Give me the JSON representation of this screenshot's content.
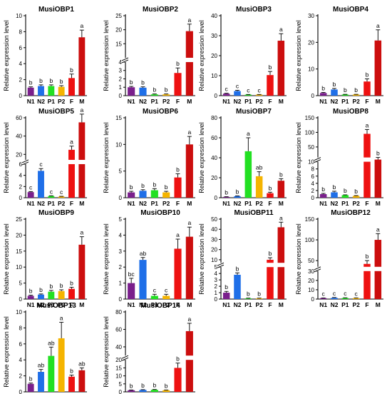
{
  "figure": {
    "ylabel": "Relative expression level",
    "categories": [
      "N1",
      "N2",
      "P1",
      "P2",
      "F",
      "M"
    ],
    "colors": [
      "#7a1f8c",
      "#1f6fe8",
      "#22e022",
      "#f5b400",
      "#ee1111",
      "#cc0e0e"
    ]
  },
  "chart_data": [
    {
      "type": "bar",
      "title": "MusiOBP1",
      "categories": [
        "N1",
        "N2",
        "P1",
        "P2",
        "F",
        "M"
      ],
      "values": [
        1.0,
        1.2,
        1.2,
        1.1,
        2.2,
        7.3
      ],
      "errors": [
        0.1,
        0.15,
        0.15,
        0.15,
        0.5,
        0.9
      ],
      "letters": [
        "b",
        "b",
        "b",
        "b",
        "b",
        "a"
      ],
      "ylabel": "Relative expression level",
      "ylim": [
        0,
        10
      ],
      "yticks": [
        0,
        2,
        4,
        6,
        8,
        10
      ]
    },
    {
      "type": "bar",
      "title": "MusiOBP2",
      "categories": [
        "N1",
        "N2",
        "P1",
        "P2",
        "F",
        "M"
      ],
      "values": [
        1.0,
        0.95,
        0.15,
        0.15,
        2.7,
        19.5
      ],
      "errors": [
        0.1,
        0.1,
        0.05,
        0.05,
        0.6,
        2.5
      ],
      "letters": [
        "b",
        "b",
        "b",
        "b",
        "b",
        "a"
      ],
      "ylabel": "Relative expression level",
      "ylim": [
        0,
        25
      ],
      "yticks": [
        0,
        1,
        2,
        3,
        4,
        15,
        20,
        25
      ],
      "axis_break": [
        4,
        10
      ]
    },
    {
      "type": "bar",
      "title": "MusiOBP3",
      "categories": [
        "N1",
        "N2",
        "P1",
        "P2",
        "F",
        "M"
      ],
      "values": [
        1.0,
        2.3,
        0.5,
        0.5,
        10.3,
        27.5
      ],
      "errors": [
        0.2,
        0.4,
        0.1,
        0.1,
        1.8,
        3.5
      ],
      "letters": [
        "c",
        "c",
        "c",
        "c",
        "b",
        "a"
      ],
      "ylabel": "Relative expression level",
      "ylim": [
        0,
        40
      ],
      "yticks": [
        0,
        10,
        20,
        30,
        40
      ]
    },
    {
      "type": "bar",
      "title": "MusiOBP4",
      "categories": [
        "N1",
        "N2",
        "P1",
        "P2",
        "F",
        "M"
      ],
      "values": [
        1.0,
        2.3,
        0.4,
        0.4,
        5.3,
        20.7
      ],
      "errors": [
        0.2,
        0.4,
        0.1,
        0.1,
        1.0,
        4.0
      ],
      "letters": [
        "b",
        "b",
        "b",
        "b",
        "b",
        "a"
      ],
      "ylabel": "Relative expression level",
      "ylim": [
        0,
        30
      ],
      "yticks": [
        0,
        10,
        20,
        30
      ]
    },
    {
      "type": "bar",
      "title": "MusiOBP5",
      "categories": [
        "N1",
        "N2",
        "P1",
        "P2",
        "F",
        "M"
      ],
      "values": [
        1.0,
        4.8,
        0.3,
        0.2,
        25,
        55
      ],
      "errors": [
        0.1,
        0.4,
        0.05,
        0.05,
        4,
        9
      ],
      "letters": [
        "c",
        "c",
        "c",
        "c",
        "a",
        "a"
      ],
      "ylabel": "Relative expression level",
      "ylim": [
        0,
        60
      ],
      "yticks": [
        0,
        2,
        4,
        6,
        20,
        40,
        60
      ],
      "axis_break": [
        6,
        14
      ]
    },
    {
      "type": "bar",
      "title": "MusiOBP6",
      "categories": [
        "N1",
        "N2",
        "P1",
        "P2",
        "F",
        "M"
      ],
      "values": [
        1.0,
        1.3,
        1.4,
        1.0,
        3.8,
        10.0
      ],
      "errors": [
        0.2,
        0.2,
        0.3,
        0.2,
        0.7,
        1.5
      ],
      "letters": [
        "b",
        "b",
        "b",
        "b",
        "b",
        "a"
      ],
      "ylabel": "Relative expression level",
      "ylim": [
        0,
        15
      ],
      "yticks": [
        0,
        5,
        10,
        15
      ]
    },
    {
      "type": "bar",
      "title": "MusiOBP7",
      "categories": [
        "N1",
        "N2",
        "P1",
        "P2",
        "F",
        "M"
      ],
      "values": [
        0.8,
        1.5,
        46.5,
        21.5,
        4.5,
        17.0
      ],
      "errors": [
        0.2,
        0.3,
        13.5,
        4.5,
        1.0,
        2.0
      ],
      "letters": [
        "b",
        "b",
        "a",
        "ab",
        "b",
        "b"
      ],
      "ylabel": "Relative expression level",
      "ylim": [
        0,
        80
      ],
      "yticks": [
        0,
        20,
        40,
        60,
        80
      ]
    },
    {
      "type": "bar",
      "title": "MusiOBP8",
      "categories": [
        "N1",
        "N2",
        "P1",
        "P2",
        "F",
        "M"
      ],
      "values": [
        1.0,
        1.5,
        0.7,
        0.5,
        95,
        12
      ],
      "errors": [
        0.2,
        0.3,
        0.1,
        0.1,
        15,
        2
      ],
      "letters": [
        "b",
        "b",
        "b",
        "b",
        "a",
        "b"
      ],
      "ylabel": "Relative expression level",
      "ylim": [
        0,
        150
      ],
      "yticks": [
        0,
        2,
        4,
        6,
        8,
        10,
        50,
        100,
        150
      ],
      "axis_break": [
        10,
        14
      ]
    },
    {
      "type": "bar",
      "title": "MusiOBP9",
      "categories": [
        "N1",
        "N2",
        "P1",
        "P2",
        "F",
        "M"
      ],
      "values": [
        1.0,
        1.4,
        2.3,
        2.5,
        3.2,
        17.0
      ],
      "errors": [
        0.2,
        0.2,
        0.4,
        0.4,
        0.5,
        2.5
      ],
      "letters": [
        "b",
        "b",
        "b",
        "b",
        "b",
        "a"
      ],
      "ylabel": "Relative expression level",
      "ylim": [
        0,
        25
      ],
      "yticks": [
        0,
        5,
        10,
        15,
        20,
        25
      ]
    },
    {
      "type": "bar",
      "title": "MusiOBP10",
      "categories": [
        "N1",
        "N2",
        "P1",
        "P2",
        "F",
        "M"
      ],
      "values": [
        1.0,
        2.45,
        0.2,
        0.2,
        3.15,
        3.9
      ],
      "errors": [
        0.3,
        0.15,
        0.1,
        0.1,
        0.6,
        0.6
      ],
      "letters": [
        "bc",
        "ab",
        "c",
        "c",
        "a",
        "a"
      ],
      "ylabel": "Relative expression level",
      "ylim": [
        0,
        5
      ],
      "yticks": [
        0,
        1,
        2,
        3,
        4,
        5
      ]
    },
    {
      "type": "bar",
      "title": "MusiOBP11",
      "categories": [
        "N1",
        "N2",
        "P1",
        "P2",
        "F",
        "M"
      ],
      "values": [
        1.0,
        3.8,
        0.1,
        0.1,
        10,
        42
      ],
      "errors": [
        0.2,
        0.3,
        0.05,
        0.05,
        2,
        5
      ],
      "letters": [
        "b",
        "b",
        "b",
        "b",
        "b",
        "a"
      ],
      "ylabel": "Relative expression level",
      "ylim": [
        0,
        50
      ],
      "yticks": [
        0,
        1,
        2,
        3,
        4,
        5,
        10,
        20,
        30,
        40,
        50
      ],
      "axis_break": [
        5,
        7
      ]
    },
    {
      "type": "bar",
      "title": "MusiOBP12",
      "categories": [
        "N1",
        "N2",
        "P1",
        "P2",
        "F",
        "M"
      ],
      "values": [
        1.0,
        1.3,
        1.1,
        1.0,
        42,
        100
      ],
      "errors": [
        0.2,
        0.4,
        0.3,
        0.3,
        8,
        15
      ],
      "letters": [
        "c",
        "c",
        "c",
        "c",
        "b",
        "a"
      ],
      "ylabel": "Relative expression level",
      "ylim": [
        0,
        150
      ],
      "yticks": [
        0,
        10,
        20,
        30,
        50,
        100,
        150
      ],
      "axis_break": [
        30,
        35
      ]
    },
    {
      "type": "bar",
      "title": "MusiOBP13",
      "categories": [
        "N1",
        "N2",
        "P1",
        "P2",
        "F",
        "M"
      ],
      "values": [
        1.0,
        2.5,
        4.5,
        6.7,
        1.9,
        2.7
      ],
      "errors": [
        0.1,
        0.3,
        1.1,
        2.0,
        0.2,
        0.3
      ],
      "letters": [
        "b",
        "ab",
        "ab",
        "a",
        "b",
        "ab"
      ],
      "ylabel": "Relative expression level",
      "ylim": [
        0,
        10
      ],
      "yticks": [
        0,
        2,
        4,
        6,
        8,
        10
      ]
    },
    {
      "type": "bar",
      "title": "MusiOBP14",
      "categories": [
        "N1",
        "N2",
        "P1",
        "P2",
        "F",
        "M"
      ],
      "values": [
        1.0,
        1.2,
        1.3,
        1.0,
        15,
        58
      ],
      "errors": [
        0.2,
        0.2,
        0.2,
        0.2,
        3,
        9
      ],
      "letters": [
        "b",
        "b",
        "b",
        "b",
        "b",
        "a"
      ],
      "ylabel": "Relative expression level",
      "ylim": [
        0,
        80
      ],
      "yticks": [
        0,
        5,
        10,
        15,
        20,
        40,
        60,
        80
      ],
      "axis_break": [
        20,
        30
      ]
    }
  ]
}
